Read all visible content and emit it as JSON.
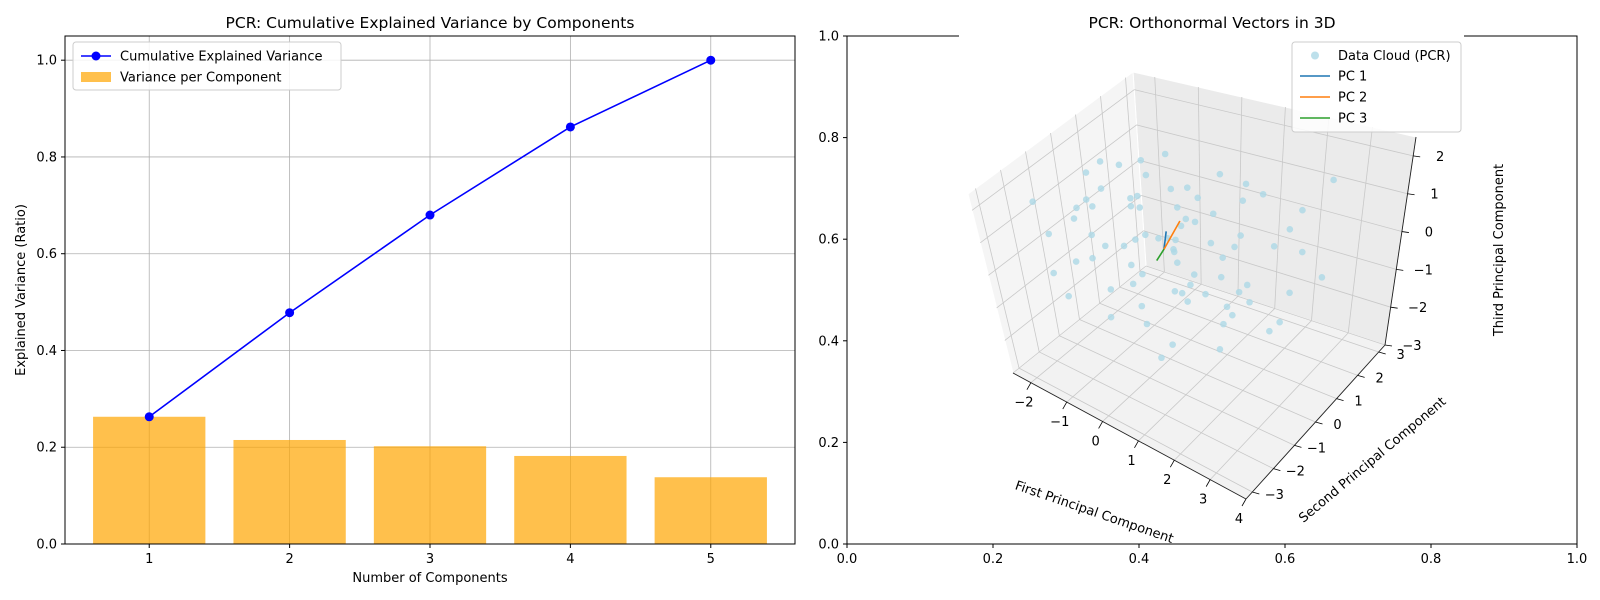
{
  "chart_data": [
    {
      "type": "bar",
      "title": "PCR: Cumulative Explained Variance by Components",
      "xlabel": "Number of Components",
      "ylabel": "Explained Variance (Ratio)",
      "categories": [
        1,
        2,
        3,
        4,
        5
      ],
      "xlim": [
        0.4,
        5.6
      ],
      "ylim": [
        0,
        1.05
      ],
      "yticks": [
        0.0,
        0.2,
        0.4,
        0.6,
        0.8,
        1.0
      ],
      "grid": true,
      "legend_position": "top-left",
      "series": [
        {
          "name": "Cumulative Explained Variance",
          "kind": "line",
          "color": "#0000ff",
          "values": [
            0.263,
            0.478,
            0.68,
            0.862,
            1.0
          ]
        },
        {
          "name": "Variance per Component",
          "kind": "bar",
          "color": "#ffa500",
          "values": [
            0.263,
            0.215,
            0.202,
            0.182,
            0.138
          ]
        }
      ]
    },
    {
      "type": "scatter",
      "projection": "3d",
      "title": "PCR: Orthonormal Vectors in 3D",
      "xlabel": "First Principal Component",
      "ylabel": "Second Principal Component",
      "zlabel": "Third Principal Component",
      "xlim": [
        -2.5,
        4
      ],
      "ylim": [
        -3.3,
        3.3
      ],
      "zlim": [
        -3,
        2.5
      ],
      "xticks": [
        -2,
        -1,
        0,
        1,
        2,
        3,
        4
      ],
      "yticks": [
        -3,
        -2,
        -1,
        0,
        1,
        2,
        3
      ],
      "zticks": [
        -3,
        -2,
        -1,
        0,
        1,
        2
      ],
      "background_axes": {
        "xlim": [
          0,
          1
        ],
        "ylim": [
          0,
          1
        ],
        "xticks": [
          0.0,
          0.2,
          0.4,
          0.6,
          0.8,
          1.0
        ],
        "yticks": [
          0.0,
          0.2,
          0.4,
          0.6,
          0.8,
          1.0
        ]
      },
      "legend_position": "top-right",
      "series": [
        {
          "name": "Data Cloud (PCR)",
          "kind": "scatter",
          "color": "#add8e6",
          "points": [
            [
              -2.1,
              0.5,
              1.2
            ],
            [
              -1.8,
              -0.5,
              0.8
            ],
            [
              -1.5,
              1.2,
              0.3
            ],
            [
              -1.2,
              -1.0,
              1.5
            ],
            [
              -0.9,
              0.3,
              -0.2
            ],
            [
              -0.6,
              -1.4,
              0.6
            ],
            [
              -0.3,
              0.9,
              1.1
            ],
            [
              0.0,
              -0.2,
              0.4
            ],
            [
              0.3,
              1.5,
              -0.5
            ],
            [
              0.6,
              -0.8,
              0.9
            ],
            [
              0.9,
              0.2,
              -1.0
            ],
            [
              1.2,
              -1.6,
              0.1
            ],
            [
              1.5,
              0.7,
              0.5
            ],
            [
              1.8,
              -0.4,
              -0.7
            ],
            [
              2.1,
              1.1,
              0.2
            ],
            [
              2.4,
              -1.2,
              -0.3
            ],
            [
              2.7,
              0.4,
              -1.2
            ],
            [
              3.0,
              -0.6,
              -0.8
            ],
            [
              -2.0,
              2.0,
              -0.5
            ],
            [
              -1.6,
              -2.0,
              0.9
            ],
            [
              -1.3,
              2.4,
              1.0
            ],
            [
              -1.0,
              -2.5,
              -0.4
            ],
            [
              -0.7,
              1.8,
              0.0
            ],
            [
              -0.4,
              -1.8,
              -1.1
            ],
            [
              -0.1,
              2.6,
              0.7
            ],
            [
              0.2,
              -2.6,
              0.3
            ],
            [
              0.5,
              2.2,
              -0.9
            ],
            [
              0.8,
              -2.2,
              -0.6
            ],
            [
              1.1,
              1.6,
              1.3
            ],
            [
              1.4,
              -1.9,
              1.4
            ],
            [
              1.7,
              2.5,
              -0.2
            ],
            [
              2.0,
              -2.4,
              0.5
            ],
            [
              2.3,
              1.9,
              0.8
            ],
            [
              2.6,
              -2.0,
              1.1
            ],
            [
              -2.2,
              -1.2,
              -0.9
            ],
            [
              -1.9,
              1.4,
              -1.3
            ],
            [
              -1.4,
              0.0,
              2.0
            ],
            [
              -0.8,
              0.6,
              1.9
            ],
            [
              -0.2,
              -0.6,
              1.7
            ],
            [
              0.4,
              0.4,
              1.6
            ],
            [
              1.0,
              -0.2,
              1.8
            ],
            [
              1.6,
              0.6,
              1.5
            ],
            [
              -1.1,
              0.8,
              -1.5
            ],
            [
              -0.5,
              -0.3,
              -1.6
            ],
            [
              0.1,
              0.9,
              -1.4
            ],
            [
              0.7,
              -1.0,
              -1.8
            ],
            [
              1.3,
              0.3,
              -1.7
            ],
            [
              1.9,
              -0.9,
              -1.5
            ],
            [
              -2.3,
              0.1,
              0.0
            ],
            [
              -1.7,
              -0.2,
              -0.1
            ],
            [
              -0.9,
              -1.5,
              0.2
            ],
            [
              -0.2,
              1.3,
              0.1
            ],
            [
              0.6,
              1.1,
              0.6
            ],
            [
              1.2,
              -1.3,
              -0.1
            ],
            [
              2.2,
              -0.1,
              -0.6
            ],
            [
              2.9,
              0.9,
              0.4
            ],
            [
              3.3,
              -0.3,
              0.1
            ],
            [
              -1.2,
              -0.8,
              1.2
            ],
            [
              -0.6,
              0.1,
              0.9
            ],
            [
              0.0,
              0.5,
              0.0
            ],
            [
              0.5,
              -0.4,
              0.3
            ],
            [
              1.0,
              0.8,
              -0.3
            ],
            [
              -1.5,
              1.9,
              0.6
            ],
            [
              -0.8,
              2.1,
              -0.7
            ],
            [
              0.9,
              2.7,
              0.4
            ],
            [
              1.5,
              -2.8,
              -0.9
            ],
            [
              -0.4,
              -2.9,
              1.0
            ],
            [
              2.5,
              2.8,
              1.2
            ],
            [
              -2.4,
              2.3,
              0.4
            ],
            [
              0.3,
              -1.2,
              1.1
            ],
            [
              -0.3,
              -0.9,
              -0.6
            ],
            [
              0.8,
              0.0,
              1.0
            ],
            [
              1.4,
              1.2,
              -1.1
            ],
            [
              -1.9,
              0.7,
              0.7
            ],
            [
              -2.0,
              -1.8,
              1.6
            ],
            [
              3.1,
              1.5,
              -0.5
            ],
            [
              2.8,
              -1.6,
              0.6
            ],
            [
              -1.0,
              0.2,
              -0.9
            ],
            [
              0.2,
              0.2,
              -0.4
            ],
            [
              1.1,
              -0.6,
              0.0
            ]
          ]
        },
        {
          "name": "PC 1",
          "kind": "vector",
          "color": "#1f77b4",
          "vector": [
            0.11,
            -0.05,
            0.55
          ]
        },
        {
          "name": "PC 2",
          "kind": "vector",
          "color": "#ff7f0e",
          "vector": [
            0.25,
            0.3,
            0.7
          ]
        },
        {
          "name": "PC 3",
          "kind": "vector",
          "color": "#2ca02c",
          "vector": [
            -0.05,
            -0.25,
            -0.2
          ]
        }
      ]
    }
  ]
}
